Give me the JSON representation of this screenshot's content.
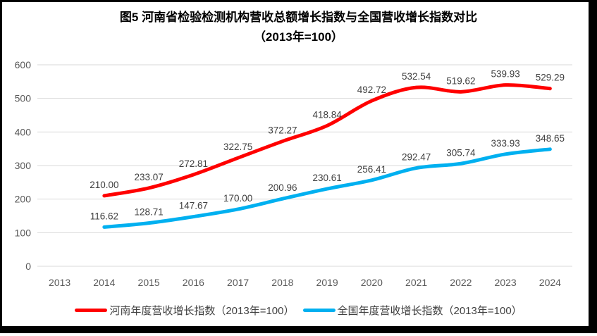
{
  "title": {
    "line1": "图5  河南省检验检测机构营收总额增长指数与全国营收增长指数对比",
    "line2": "（2013年=100）"
  },
  "chart_data": {
    "type": "line",
    "categories": [
      "2013",
      "2014",
      "2015",
      "2016",
      "2017",
      "2018",
      "2019",
      "2020",
      "2021",
      "2022",
      "2023",
      "2024"
    ],
    "series": [
      {
        "name": "河南年度营收增长指数（2013年=100）",
        "color": "#FF0000",
        "start_index": 1,
        "values": [
          210.0,
          233.07,
          272.81,
          322.75,
          372.27,
          418.84,
          492.72,
          532.54,
          519.62,
          539.93,
          529.29
        ]
      },
      {
        "name": "全国年度营收增长指数（2013年=100）",
        "color": "#00B0F0",
        "start_index": 1,
        "values": [
          116.62,
          128.71,
          147.67,
          170.0,
          200.96,
          230.61,
          256.41,
          292.47,
          305.74,
          333.93,
          348.65
        ]
      }
    ],
    "title": "图5 河南省检验检测机构营收总额增长指数与全国营收增长指数对比（2013年=100）",
    "xlabel": "",
    "ylabel": "",
    "ylim": [
      0,
      600
    ],
    "ytick_step": 100,
    "grid": true,
    "legend_position": "bottom",
    "data_labels": true,
    "smooth": true
  },
  "style_colors": {
    "gridline": "#D9D9D9",
    "tick_label": "#595959",
    "data_label": "#404040",
    "frame_border": "#000000"
  }
}
